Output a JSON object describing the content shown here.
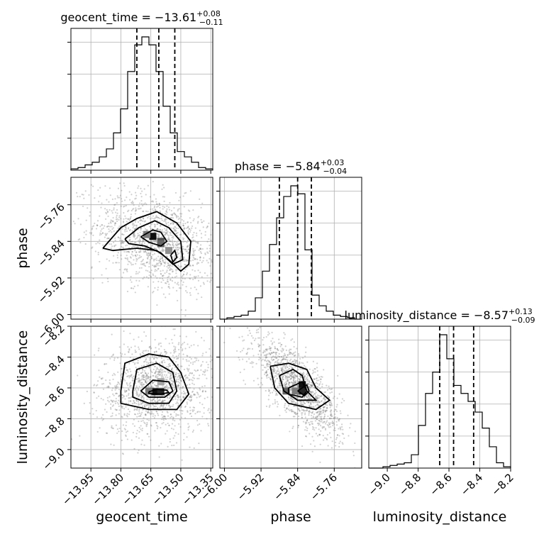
{
  "chart_data": {
    "type": "corner",
    "parameters": [
      "geocent_time",
      "phase",
      "luminosity_distance"
    ],
    "axis_labels": {
      "geocent_time": "geocent_time",
      "phase": "phase",
      "luminosity_distance": "luminosity_distance"
    },
    "ranges": {
      "geocent_time": [
        -14.05,
        -13.34
      ],
      "phase": [
        -6.01,
        -5.7
      ],
      "luminosity_distance": [
        -9.12,
        -8.2
      ]
    },
    "ticks": {
      "geocent_time": [
        -13.95,
        -13.8,
        -13.65,
        -13.5,
        -13.35
      ],
      "phase": [
        -6.0,
        -5.92,
        -5.84,
        -5.76
      ],
      "luminosity_distance": [
        -9.0,
        -8.8,
        -8.6,
        -8.4,
        -8.2
      ]
    },
    "tick_labels": {
      "geocent_time": [
        "−13.95",
        "−13.80",
        "−13.65",
        "−13.50",
        "−13.35"
      ],
      "phase": [
        "−6.00",
        "−5.92",
        "−5.84",
        "−5.76"
      ],
      "luminosity_distance": [
        "−9.0",
        "−8.8",
        "−8.6",
        "−8.4",
        "−8.2"
      ]
    },
    "titles": [
      {
        "param": "geocent_time",
        "text": "geocent_time = −13.61",
        "sup": "+0.08",
        "sub": "−0.11"
      },
      {
        "param": "phase",
        "text": "phase = −5.84",
        "sup": "+0.03",
        "sub": "−0.04"
      },
      {
        "param": "luminosity_distance",
        "text": "luminosity_distance = −8.57",
        "sup": "+0.13",
        "sub": "−0.09"
      }
    ],
    "histograms": {
      "geocent_time": {
        "edges": [
          -14.05,
          -14.0145,
          -13.979,
          -13.9435,
          -13.908,
          -13.8725,
          -13.837,
          -13.8015,
          -13.766,
          -13.7305,
          -13.695,
          -13.6595,
          -13.624,
          -13.5885,
          -13.553,
          -13.5175,
          -13.482,
          -13.4465,
          -13.411,
          -13.3755,
          -13.34
        ],
        "counts": [
          0.01,
          0.02,
          0.04,
          0.06,
          0.1,
          0.16,
          0.28,
          0.46,
          0.74,
          0.94,
          1.0,
          0.94,
          0.74,
          0.48,
          0.28,
          0.14,
          0.1,
          0.06,
          0.02,
          0.01
        ],
        "quantiles": [
          -13.72,
          -13.61,
          -13.53
        ]
      },
      "phase": {
        "edges": [
          -6.01,
          -5.9945,
          -5.979,
          -5.9635,
          -5.948,
          -5.9325,
          -5.917,
          -5.9015,
          -5.886,
          -5.8705,
          -5.855,
          -5.8395,
          -5.824,
          -5.8085,
          -5.793,
          -5.7775,
          -5.762,
          -5.7465,
          -5.731,
          -5.7155,
          -5.7
        ],
        "counts": [
          0.0,
          0.01,
          0.02,
          0.03,
          0.06,
          0.16,
          0.36,
          0.56,
          0.76,
          0.92,
          1.0,
          0.94,
          0.52,
          0.18,
          0.1,
          0.06,
          0.03,
          0.02,
          0.01,
          0.0
        ],
        "quantiles": [
          -5.88,
          -5.84,
          -5.81
        ]
      },
      "luminosity_distance": {
        "edges": [
          -9.12,
          -9.074,
          -9.028,
          -8.982,
          -8.936,
          -8.89,
          -8.844,
          -8.798,
          -8.752,
          -8.706,
          -8.66,
          -8.614,
          -8.568,
          -8.522,
          -8.476,
          -8.43,
          -8.384,
          -8.338,
          -8.292,
          -8.246,
          -8.2
        ],
        "counts": [
          0.0,
          0.0,
          0.01,
          0.02,
          0.03,
          0.04,
          0.1,
          0.32,
          0.56,
          0.72,
          1.0,
          0.82,
          0.62,
          0.56,
          0.5,
          0.42,
          0.3,
          0.16,
          0.04,
          0.01
        ],
        "quantiles": [
          -8.66,
          -8.57,
          -8.44
        ]
      }
    },
    "pairs": [
      {
        "x": "geocent_time",
        "y": "phase",
        "center": [
          -13.62,
          -5.84
        ],
        "spread": [
          0.13,
          0.045
        ],
        "corr": -0.35,
        "contours": [
          [
            [
              -13.89,
              -5.855
            ],
            [
              -13.8,
              -5.81
            ],
            [
              -13.72,
              -5.79
            ],
            [
              -13.62,
              -5.775
            ],
            [
              -13.52,
              -5.8
            ],
            [
              -13.45,
              -5.84
            ],
            [
              -13.46,
              -5.89
            ],
            [
              -13.5,
              -5.905
            ],
            [
              -13.56,
              -5.88
            ],
            [
              -13.62,
              -5.86
            ],
            [
              -13.72,
              -5.855
            ],
            [
              -13.84,
              -5.86
            ],
            [
              -13.89,
              -5.855
            ]
          ],
          [
            [
              -13.78,
              -5.835
            ],
            [
              -13.71,
              -5.81
            ],
            [
              -13.63,
              -5.795
            ],
            [
              -13.56,
              -5.81
            ],
            [
              -13.5,
              -5.84
            ],
            [
              -13.49,
              -5.88
            ],
            [
              -13.54,
              -5.89
            ],
            [
              -13.6,
              -5.865
            ],
            [
              -13.68,
              -5.85
            ],
            [
              -13.76,
              -5.845
            ],
            [
              -13.78,
              -5.835
            ]
          ],
          [
            [
              -13.7,
              -5.83
            ],
            [
              -13.64,
              -5.815
            ],
            [
              -13.6,
              -5.82
            ],
            [
              -13.57,
              -5.84
            ],
            [
              -13.6,
              -5.85
            ],
            [
              -13.66,
              -5.842
            ],
            [
              -13.7,
              -5.83
            ]
          ],
          [
            [
              -13.55,
              -5.87
            ],
            [
              -13.53,
              -5.86
            ],
            [
              -13.52,
              -5.875
            ],
            [
              -13.54,
              -5.885
            ],
            [
              -13.55,
              -5.87
            ]
          ]
        ],
        "density_cells": [
          {
            "x": -13.64,
            "y": -5.829,
            "v": 1.0
          },
          {
            "x": -13.6,
            "y": -5.84,
            "v": 0.7
          },
          {
            "x": -13.6,
            "y": -5.845,
            "v": 0.6
          },
          {
            "x": -13.67,
            "y": -5.825,
            "v": 0.5
          },
          {
            "x": -13.56,
            "y": -5.86,
            "v": 0.4
          }
        ]
      },
      {
        "x": "geocent_time",
        "y": "luminosity_distance",
        "center": [
          -13.62,
          -8.6
        ],
        "spread": [
          0.12,
          0.13
        ],
        "corr": 0.1,
        "contours": [
          [
            [
              -13.8,
              -8.62
            ],
            [
              -13.78,
              -8.44
            ],
            [
              -13.66,
              -8.38
            ],
            [
              -13.56,
              -8.4
            ],
            [
              -13.5,
              -8.5
            ],
            [
              -13.46,
              -8.64
            ],
            [
              -13.52,
              -8.74
            ],
            [
              -13.66,
              -8.74
            ],
            [
              -13.8,
              -8.7
            ],
            [
              -13.8,
              -8.62
            ]
          ],
          [
            [
              -13.74,
              -8.62
            ],
            [
              -13.72,
              -8.48
            ],
            [
              -13.62,
              -8.44
            ],
            [
              -13.54,
              -8.5
            ],
            [
              -13.52,
              -8.62
            ],
            [
              -13.56,
              -8.7
            ],
            [
              -13.66,
              -8.7
            ],
            [
              -13.74,
              -8.66
            ],
            [
              -13.74,
              -8.62
            ]
          ],
          [
            [
              -13.7,
              -8.62
            ],
            [
              -13.64,
              -8.55
            ],
            [
              -13.56,
              -8.56
            ],
            [
              -13.54,
              -8.62
            ],
            [
              -13.58,
              -8.66
            ],
            [
              -13.66,
              -8.66
            ],
            [
              -13.7,
              -8.62
            ]
          ],
          [
            [
              -13.66,
              -8.625
            ],
            [
              -13.62,
              -8.61
            ],
            [
              -13.57,
              -8.615
            ],
            [
              -13.56,
              -8.63
            ],
            [
              -13.6,
              -8.64
            ],
            [
              -13.66,
              -8.635
            ],
            [
              -13.66,
              -8.625
            ]
          ]
        ],
        "density_cells": [
          {
            "x": -13.63,
            "y": -8.625,
            "v": 1.0
          },
          {
            "x": -13.6,
            "y": -8.625,
            "v": 0.9
          },
          {
            "x": -13.66,
            "y": -8.62,
            "v": 0.5
          },
          {
            "x": -13.6,
            "y": -8.56,
            "v": 0.3
          }
        ]
      },
      {
        "x": "phase",
        "y": "luminosity_distance",
        "center": [
          -5.84,
          -8.6
        ],
        "spread": [
          0.04,
          0.13
        ],
        "corr": -0.75,
        "contours": [
          [
            [
              -5.9,
              -8.46
            ],
            [
              -5.86,
              -8.44
            ],
            [
              -5.82,
              -8.48
            ],
            [
              -5.8,
              -8.6
            ],
            [
              -5.77,
              -8.68
            ],
            [
              -5.8,
              -8.74
            ],
            [
              -5.86,
              -8.7
            ],
            [
              -5.89,
              -8.6
            ],
            [
              -5.9,
              -8.46
            ]
          ],
          [
            [
              -5.88,
              -8.52
            ],
            [
              -5.85,
              -8.48
            ],
            [
              -5.83,
              -8.52
            ],
            [
              -5.82,
              -8.62
            ],
            [
              -5.8,
              -8.68
            ],
            [
              -5.84,
              -8.68
            ],
            [
              -5.87,
              -8.62
            ],
            [
              -5.88,
              -8.52
            ]
          ],
          [
            [
              -5.86,
              -8.6
            ],
            [
              -5.83,
              -8.56
            ],
            [
              -5.82,
              -8.62
            ],
            [
              -5.83,
              -8.66
            ],
            [
              -5.86,
              -8.64
            ],
            [
              -5.86,
              -8.6
            ]
          ],
          [
            [
              -5.84,
              -8.62
            ],
            [
              -5.82,
              -8.58
            ],
            [
              -5.815,
              -8.62
            ],
            [
              -5.825,
              -8.65
            ],
            [
              -5.84,
              -8.62
            ]
          ]
        ],
        "density_cells": [
          {
            "x": -5.83,
            "y": -8.58,
            "v": 1.0
          },
          {
            "x": -5.83,
            "y": -8.62,
            "v": 0.9
          },
          {
            "x": -5.865,
            "y": -8.62,
            "v": 0.6
          },
          {
            "x": -5.845,
            "y": -8.62,
            "v": 0.5
          }
        ]
      }
    ],
    "grid": true,
    "legend": "none"
  }
}
